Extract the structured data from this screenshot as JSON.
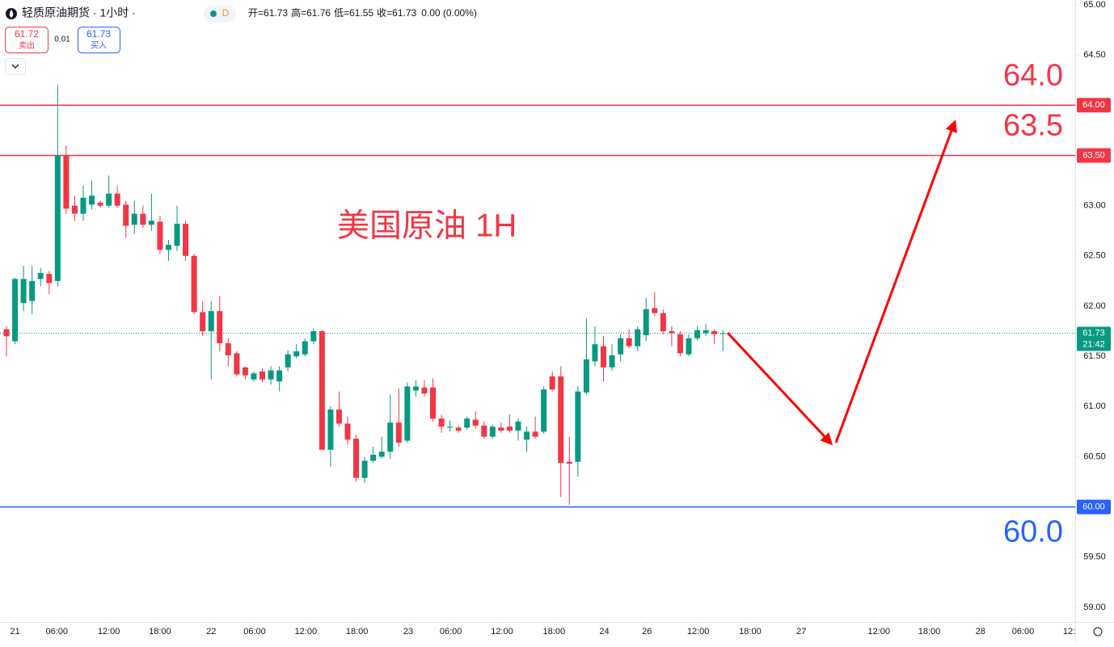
{
  "header": {
    "symbol": "轻质原油期货 · 1小时 ·",
    "badge": "D",
    "ohlc": [
      {
        "label": "开=",
        "value": "61.73"
      },
      {
        "label": "高=",
        "value": "61.76"
      },
      {
        "label": "低=",
        "value": "61.55"
      },
      {
        "label": "收=",
        "value": "61.73"
      }
    ],
    "change": "0.00 (0.00%)",
    "sell": {
      "price": "61.72",
      "label": "卖出"
    },
    "spread": "0.01",
    "buy": {
      "price": "61.73",
      "label": "买入"
    }
  },
  "chart_data": {
    "type": "candlestick",
    "title": "美国原油 1H",
    "up_color": "#089981",
    "down_color": "#f23645",
    "grid": false,
    "open": [
      61.77,
      61.65,
      62.03,
      62.05,
      62.27,
      62.32,
      62.25,
      63.5,
      63.0,
      62.92,
      63.01,
      63.03,
      63.0,
      63.12,
      63.01,
      62.81,
      62.92,
      62.81,
      62.84,
      62.56,
      62.6,
      62.82,
      62.5,
      61.94,
      61.75,
      61.95,
      61.63,
      61.53,
      61.39,
      61.27,
      61.35,
      61.27,
      61.25,
      61.39,
      61.5,
      61.52,
      61.65,
      61.75,
      60.57,
      60.97,
      60.83,
      60.68,
      60.29,
      60.46,
      60.5,
      60.55,
      60.84,
      60.66,
      61.16,
      61.19,
      61.19,
      60.88,
      60.79,
      60.79,
      60.79,
      60.87,
      60.81,
      60.7,
      60.79,
      60.8,
      60.76,
      60.67,
      60.75,
      60.75,
      61.3,
      61.3,
      60.45,
      60.45,
      61.14,
      61.45,
      61.6,
      61.39,
      61.52,
      61.68,
      61.6,
      61.71,
      61.98,
      61.93,
      61.75,
      61.72,
      61.52,
      61.68,
      61.73,
      61.75,
      61.73
    ],
    "high": [
      61.8,
      62.28,
      62.4,
      62.4,
      62.38,
      62.35,
      64.2,
      63.6,
      63.1,
      63.2,
      63.25,
      63.05,
      63.3,
      63.2,
      63.05,
      63.05,
      63.0,
      63.12,
      62.9,
      62.66,
      63.0,
      62.85,
      62.52,
      62.05,
      62.05,
      62.1,
      61.68,
      61.55,
      61.4,
      61.35,
      61.38,
      61.4,
      61.4,
      61.56,
      61.62,
      61.68,
      61.78,
      61.76,
      61.0,
      61.15,
      60.9,
      60.72,
      60.5,
      60.6,
      60.7,
      61.12,
      61.18,
      61.24,
      61.26,
      61.26,
      61.28,
      60.92,
      60.86,
      60.81,
      60.9,
      60.95,
      60.85,
      60.82,
      60.84,
      60.92,
      60.88,
      60.8,
      60.9,
      61.2,
      61.35,
      61.4,
      60.7,
      61.2,
      61.88,
      61.8,
      61.7,
      61.62,
      61.72,
      61.77,
      61.8,
      62.08,
      62.14,
      61.97,
      61.8,
      61.75,
      61.72,
      61.8,
      61.82,
      61.77,
      61.76
    ],
    "low": [
      61.5,
      61.62,
      61.95,
      61.92,
      62.2,
      62.12,
      62.2,
      62.92,
      62.85,
      62.85,
      62.96,
      62.98,
      62.98,
      62.98,
      62.68,
      62.72,
      62.78,
      62.75,
      62.52,
      62.45,
      62.55,
      62.45,
      61.92,
      61.7,
      61.27,
      61.55,
      61.4,
      61.3,
      61.27,
      61.25,
      61.24,
      61.22,
      61.15,
      61.35,
      61.48,
      61.5,
      61.62,
      60.57,
      60.4,
      60.8,
      60.62,
      60.25,
      60.24,
      60.44,
      60.48,
      60.48,
      60.6,
      60.64,
      61.1,
      61.1,
      60.85,
      60.74,
      60.75,
      60.74,
      60.77,
      60.78,
      60.68,
      60.68,
      60.74,
      60.74,
      60.66,
      60.55,
      60.68,
      60.73,
      61.15,
      60.1,
      60.02,
      60.3,
      61.12,
      61.4,
      61.25,
      61.36,
      61.45,
      61.58,
      61.55,
      61.65,
      61.9,
      61.72,
      61.6,
      61.5,
      61.5,
      61.66,
      61.7,
      61.62,
      61.55
    ],
    "close": [
      61.7,
      62.27,
      62.27,
      62.25,
      62.33,
      62.23,
      63.5,
      62.97,
      62.92,
      63.08,
      63.1,
      63.0,
      63.12,
      63.0,
      62.8,
      62.92,
      62.81,
      62.85,
      62.56,
      62.61,
      62.82,
      62.5,
      61.94,
      61.75,
      61.95,
      61.63,
      61.51,
      61.32,
      61.31,
      61.33,
      61.27,
      61.36,
      61.36,
      61.52,
      61.55,
      61.65,
      61.75,
      60.57,
      60.97,
      60.83,
      60.67,
      60.29,
      60.46,
      60.52,
      60.55,
      60.84,
      60.64,
      61.2,
      61.2,
      61.13,
      60.88,
      60.8,
      60.8,
      60.76,
      60.88,
      60.81,
      60.7,
      60.8,
      60.76,
      60.76,
      60.85,
      60.75,
      60.7,
      61.17,
      61.17,
      60.44,
      60.43,
      61.15,
      61.47,
      61.62,
      61.39,
      61.51,
      61.68,
      61.6,
      61.77,
      61.97,
      61.93,
      61.75,
      61.73,
      61.53,
      61.68,
      61.76,
      61.76,
      61.72,
      61.73
    ],
    "xlim": [
      -0.76,
      125.31
    ],
    "xticks": [
      {
        "value": 1,
        "label": "21"
      },
      {
        "value": 5.9,
        "label": "06:00"
      },
      {
        "value": 12,
        "label": "12:00"
      },
      {
        "value": 18,
        "label": "18:00"
      },
      {
        "value": 24,
        "label": "22"
      },
      {
        "value": 29.1,
        "label": "06:00"
      },
      {
        "value": 35.1,
        "label": "12:00"
      },
      {
        "value": 41.1,
        "label": "18:00"
      },
      {
        "value": 47.1,
        "label": "23"
      },
      {
        "value": 52.1,
        "label": "06:00"
      },
      {
        "value": 58.1,
        "label": "12:00"
      },
      {
        "value": 64.2,
        "label": "18:00"
      },
      {
        "value": 70.1,
        "label": "24"
      },
      {
        "value": 75.1,
        "label": "26"
      },
      {
        "value": 81.1,
        "label": "12:00"
      },
      {
        "value": 87.2,
        "label": "18:00"
      },
      {
        "value": 93.2,
        "label": "27"
      },
      {
        "value": 102.3,
        "label": "12:00"
      },
      {
        "value": 108.2,
        "label": "18:00"
      },
      {
        "value": 114.2,
        "label": "28"
      },
      {
        "value": 119.2,
        "label": "06:00"
      },
      {
        "value": 124.6,
        "label": "12:"
      }
    ],
    "ylim": [
      58.855,
      65.048
    ],
    "yticks": [
      {
        "value": 65,
        "label": "65.00"
      },
      {
        "value": 64.5,
        "label": "64.50"
      },
      {
        "value": 64,
        "label": "64.00"
      },
      {
        "value": 63.5,
        "label": "63.50"
      },
      {
        "value": 63,
        "label": "63.00"
      },
      {
        "value": 62.5,
        "label": "62.50"
      },
      {
        "value": 62,
        "label": "62.00"
      },
      {
        "value": 61.5,
        "label": "61.50"
      },
      {
        "value": 61,
        "label": "61.00"
      },
      {
        "value": 60.5,
        "label": "60.50"
      },
      {
        "value": 60,
        "label": "60.00"
      },
      {
        "value": 59.5,
        "label": "59.50"
      },
      {
        "value": 59,
        "label": "59.00"
      }
    ],
    "levels": [
      {
        "value": 64,
        "label": "64.00",
        "note": "64.0",
        "note_side": "above",
        "color": "#f23645"
      },
      {
        "value": 63.5,
        "label": "63.50",
        "note": "63.5",
        "note_side": "above",
        "color": "#f23645"
      },
      {
        "value": 60,
        "label": "60.00",
        "note": "60.0",
        "note_side": "below",
        "color": "#2962ff"
      }
    ],
    "last_price": {
      "value": 61.73,
      "label": "61.73",
      "countdown": "21:42",
      "color": "#089981"
    }
  }
}
